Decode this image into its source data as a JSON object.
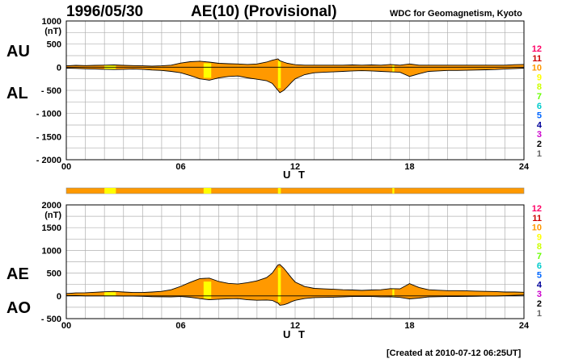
{
  "header": {
    "date": "1996/05/30",
    "title": "AE(10) (Provisional)",
    "org": "WDC for Geomagnetism, Kyoto"
  },
  "footer": {
    "created": "[Created at 2010-07-12 06:25UT]"
  },
  "colors": {
    "fill": "#ff9900",
    "highlight": "#ffff00",
    "grid": "#b0b0b0",
    "line": "#000000",
    "scale": [
      "#ff0066",
      "#cc0000",
      "#ff9900",
      "#ffff00",
      "#ccff00",
      "#66ff00",
      "#00cccc",
      "#0066ff",
      "#000099",
      "#cc00cc",
      "#000000",
      "#666666",
      "#bbbbbb"
    ]
  },
  "chart_data": [
    {
      "type": "area",
      "name": "AU/AL",
      "unit_label": "(nT)",
      "series_labels": [
        "AU",
        "AL"
      ],
      "xlabel": "U T",
      "xlim": [
        0,
        24
      ],
      "xticks": [
        "00",
        "06",
        "12",
        "18",
        "24"
      ],
      "ylim": [
        -2000,
        1000
      ],
      "yticks": [
        1000,
        500,
        0,
        -500,
        -1000,
        -1500,
        -2000
      ],
      "ytick_labels": [
        "1000",
        "500",
        "0",
        "- 500",
        "- 1000",
        "- 1500",
        "- 2000"
      ],
      "scale_labels": [
        "12",
        "11",
        "10",
        "9",
        "8",
        "7",
        "6",
        "5",
        "4",
        "3",
        "2",
        "1"
      ],
      "x": [
        0,
        0.5,
        1,
        1.5,
        2,
        2.5,
        3,
        3.5,
        4,
        4.5,
        5,
        5.5,
        6,
        6.5,
        7,
        7.5,
        8,
        8.5,
        9,
        9.5,
        10,
        10.5,
        10.8,
        11,
        11.1,
        11.2,
        11.4,
        11.6,
        11.8,
        12,
        12.5,
        13,
        13.5,
        14,
        14.5,
        15,
        15.5,
        16,
        16.5,
        17,
        17.5,
        18,
        18.5,
        19,
        19.5,
        20,
        20.5,
        21,
        21.5,
        22,
        22.5,
        23,
        23.5,
        24
      ],
      "upper": [
        30,
        40,
        35,
        40,
        45,
        50,
        40,
        35,
        30,
        25,
        30,
        45,
        90,
        120,
        130,
        110,
        85,
        75,
        70,
        60,
        70,
        110,
        150,
        170,
        180,
        140,
        110,
        85,
        70,
        55,
        45,
        45,
        45,
        45,
        45,
        50,
        45,
        50,
        45,
        60,
        45,
        70,
        45,
        45,
        45,
        45,
        45,
        45,
        45,
        45,
        45,
        45,
        55,
        60
      ],
      "lower": [
        -20,
        -25,
        -35,
        -40,
        -45,
        -50,
        -45,
        -40,
        -45,
        -60,
        -70,
        -90,
        -120,
        -180,
        -250,
        -280,
        -230,
        -200,
        -190,
        -230,
        -260,
        -290,
        -350,
        -450,
        -500,
        -550,
        -500,
        -420,
        -330,
        -250,
        -160,
        -120,
        -110,
        -100,
        -90,
        -80,
        -75,
        -80,
        -90,
        -100,
        -110,
        -200,
        -140,
        -90,
        -80,
        -70,
        -70,
        -65,
        -60,
        -55,
        -50,
        -40,
        -30,
        -20
      ],
      "highlight_bands": [
        [
          2,
          2.6
        ],
        [
          7.2,
          7.6
        ],
        [
          11.1,
          11.25
        ],
        [
          17.1,
          17.2
        ]
      ]
    },
    {
      "type": "area",
      "name": "AE/AO",
      "unit_label": "(nT)",
      "series_labels": [
        "AE",
        "AO"
      ],
      "xlabel": "U T",
      "xlim": [
        0,
        24
      ],
      "xticks": [
        "00",
        "06",
        "12",
        "18",
        "24"
      ],
      "ylim": [
        -500,
        2000
      ],
      "yticks": [
        2000,
        1500,
        1000,
        500,
        0,
        -500
      ],
      "ytick_labels": [
        "2000",
        "1500",
        "1000",
        "500",
        "0",
        "- 500"
      ],
      "scale_labels": [
        "12",
        "11",
        "10",
        "9",
        "8",
        "7",
        "6",
        "5",
        "4",
        "3",
        "2",
        "1"
      ],
      "x": [
        0,
        0.5,
        1,
        1.5,
        2,
        2.5,
        3,
        3.5,
        4,
        4.5,
        5,
        5.5,
        6,
        6.5,
        7,
        7.5,
        8,
        8.5,
        9,
        9.5,
        10,
        10.5,
        10.8,
        11,
        11.1,
        11.2,
        11.4,
        11.6,
        11.8,
        12,
        12.5,
        13,
        13.5,
        14,
        14.5,
        15,
        15.5,
        16,
        16.5,
        17,
        17.5,
        18,
        18.5,
        19,
        19.5,
        20,
        20.5,
        21,
        21.5,
        22,
        22.5,
        23,
        23.5,
        24
      ],
      "upper": [
        50,
        65,
        70,
        80,
        90,
        100,
        85,
        75,
        75,
        85,
        100,
        135,
        210,
        300,
        380,
        390,
        315,
        275,
        260,
        290,
        330,
        400,
        500,
        620,
        680,
        690,
        610,
        505,
        400,
        305,
        205,
        165,
        155,
        145,
        135,
        130,
        120,
        130,
        135,
        160,
        155,
        270,
        185,
        135,
        125,
        115,
        115,
        110,
        105,
        100,
        95,
        85,
        85,
        80
      ],
      "lower": [
        5,
        8,
        0,
        0,
        0,
        0,
        -3,
        -3,
        -8,
        -18,
        -20,
        -23,
        -15,
        -30,
        -60,
        -85,
        -73,
        -63,
        -60,
        -85,
        -95,
        -90,
        -100,
        -140,
        -160,
        -205,
        -195,
        -168,
        -130,
        -98,
        -58,
        -38,
        -33,
        -28,
        -23,
        -15,
        -15,
        -15,
        -23,
        -20,
        -33,
        -65,
        -48,
        -23,
        -18,
        -13,
        -13,
        -10,
        -8,
        -5,
        -3,
        3,
        13,
        20
      ],
      "highlight_bands": [
        [
          2,
          2.6
        ],
        [
          7.2,
          7.6
        ],
        [
          11.1,
          11.25
        ],
        [
          17.1,
          17.2
        ]
      ]
    }
  ],
  "activity_bar": {
    "highlight_bands": [
      [
        2,
        2.6
      ],
      [
        7.2,
        7.6
      ],
      [
        11.1,
        11.25
      ],
      [
        17.1,
        17.2
      ]
    ]
  }
}
